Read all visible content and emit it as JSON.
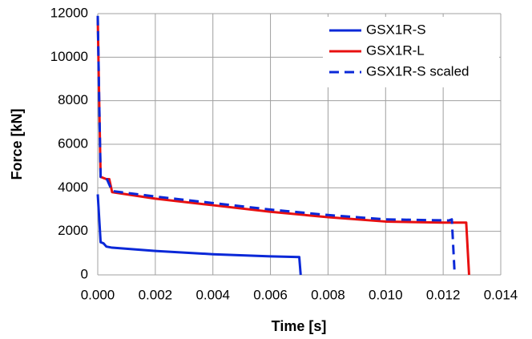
{
  "chart_data": {
    "type": "line",
    "xlabel": "Time [s]",
    "ylabel": "Force [kN]",
    "xlim": [
      0,
      0.014
    ],
    "ylim": [
      0,
      12000
    ],
    "xticks": [
      {
        "value": 0,
        "label": "0.000"
      },
      {
        "value": 0.002,
        "label": "0.002"
      },
      {
        "value": 0.004,
        "label": "0.004"
      },
      {
        "value": 0.006,
        "label": "0.006"
      },
      {
        "value": 0.008,
        "label": "0.008"
      },
      {
        "value": 0.01,
        "label": "0.010"
      },
      {
        "value": 0.012,
        "label": "0.012"
      },
      {
        "value": 0.014,
        "label": "0.014"
      }
    ],
    "yticks": [
      0,
      2000,
      4000,
      6000,
      8000,
      10000,
      12000
    ],
    "grid": true,
    "legend": "upper-right",
    "series": [
      {
        "name": "GSX1R-S",
        "color": "#0a28d8",
        "dash": false,
        "x": [
          0,
          5e-05,
          0.0001,
          0.0002,
          0.0003,
          0.0005,
          0.002,
          0.004,
          0.006,
          0.007,
          0.00705
        ],
        "values": [
          3700,
          2600,
          1500,
          1450,
          1300,
          1250,
          1100,
          950,
          850,
          820,
          0
        ]
      },
      {
        "name": "GSX1R-L",
        "color": "#e81010",
        "dash": false,
        "x": [
          0,
          5e-05,
          0.0001,
          0.0003,
          0.0004,
          0.0005,
          0.002,
          0.004,
          0.006,
          0.008,
          0.01,
          0.012,
          0.0128,
          0.0129
        ],
        "values": [
          11800,
          8000,
          4500,
          4400,
          4400,
          3800,
          3500,
          3200,
          2900,
          2650,
          2450,
          2400,
          2400,
          0
        ]
      },
      {
        "name": "GSX1R-S scaled",
        "color": "#0a28d8",
        "dash": true,
        "x": [
          0,
          5e-05,
          0.0001,
          0.0003,
          0.0005,
          0.002,
          0.004,
          0.006,
          0.008,
          0.01,
          0.0122,
          0.0123,
          0.0124
        ],
        "values": [
          11900,
          8000,
          4500,
          4450,
          3850,
          3600,
          3300,
          3000,
          2750,
          2550,
          2500,
          2550,
          0
        ]
      }
    ]
  }
}
